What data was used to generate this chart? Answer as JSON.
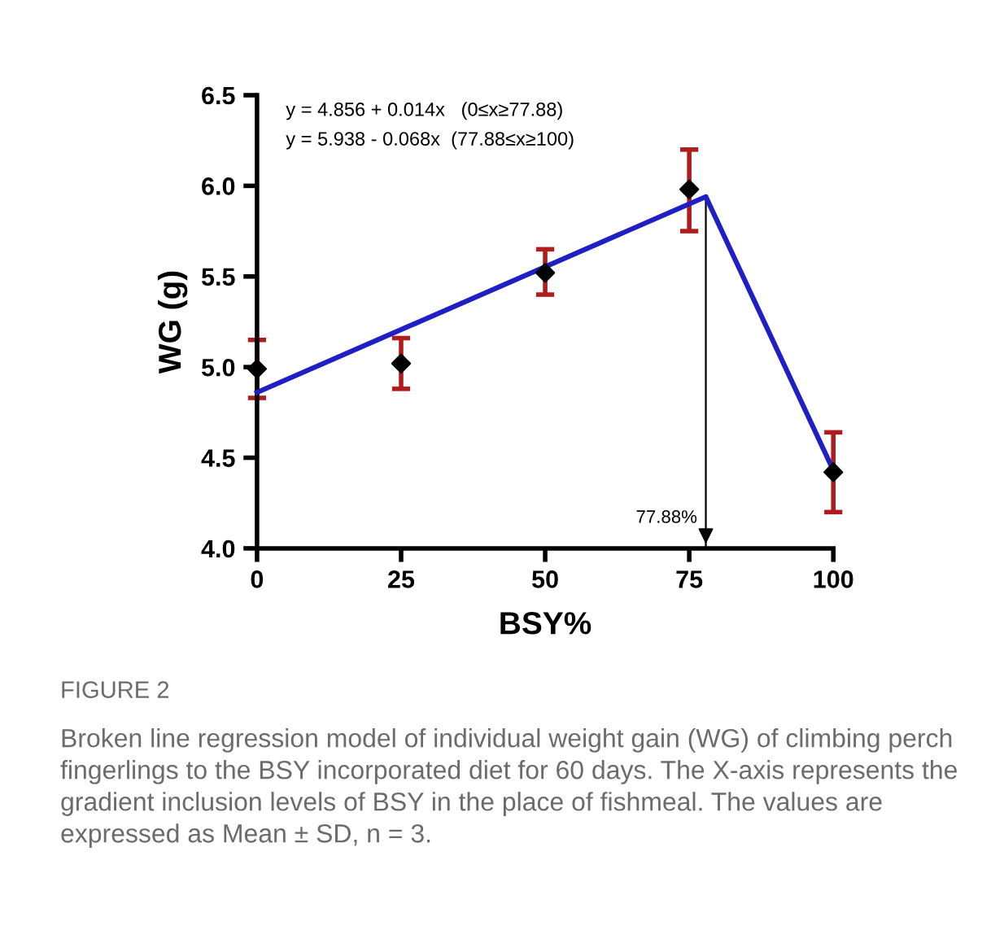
{
  "chart_data": {
    "type": "scatter",
    "xlabel": "BSY%",
    "ylabel": "WG (g)",
    "xlim": [
      0,
      100
    ],
    "xticks": [
      0,
      25,
      50,
      75,
      100
    ],
    "ylim": [
      4.0,
      6.5
    ],
    "yticks": [
      {
        "value": 4.0,
        "label": "4.0"
      },
      {
        "value": 4.5,
        "label": "4.5"
      },
      {
        "value": 5.0,
        "label": "5.0"
      },
      {
        "value": 5.5,
        "label": "5.5"
      },
      {
        "value": 6.0,
        "label": "6.0"
      },
      {
        "value": 6.5,
        "label": "6.5"
      }
    ],
    "grid": false,
    "legend": false,
    "ref_lines": [
      {
        "axis": "x",
        "value": 77.88,
        "label": "77.88%",
        "color": "#000000"
      }
    ],
    "series": [
      {
        "color": "#000000",
        "marker": "diamond",
        "x": [
          0,
          25,
          50,
          75,
          100
        ],
        "values": [
          4.99,
          5.02,
          5.52,
          5.98,
          4.42
        ],
        "errors": [
          [
            4.83,
            5.15
          ],
          [
            4.88,
            5.16
          ],
          [
            5.4,
            5.65
          ],
          [
            5.75,
            6.2
          ],
          [
            4.2,
            4.64
          ]
        ]
      },
      {
        "type": "line",
        "color": "#1f1fc4",
        "marker": "none",
        "line_style": "solid",
        "x": [
          0,
          77.88,
          100
        ],
        "values": [
          4.86,
          5.94,
          4.43
        ]
      }
    ],
    "annotations": [
      "y = 4.856 + 0.014x   (0≤x≥77.88)",
      "y = 5.938 - 0.068x  (77.88≤x≥100)",
      "FIGURE 2",
      "Broken line regression model of individual weight gain (WG) of climbing perch fingerlings to the BSY incorporated diet for 60 days. The X-axis represents the gradient inclusion levels of BSY in the place of fishmeal. The values are expressed as Mean ± SD, n = 3."
    ]
  }
}
